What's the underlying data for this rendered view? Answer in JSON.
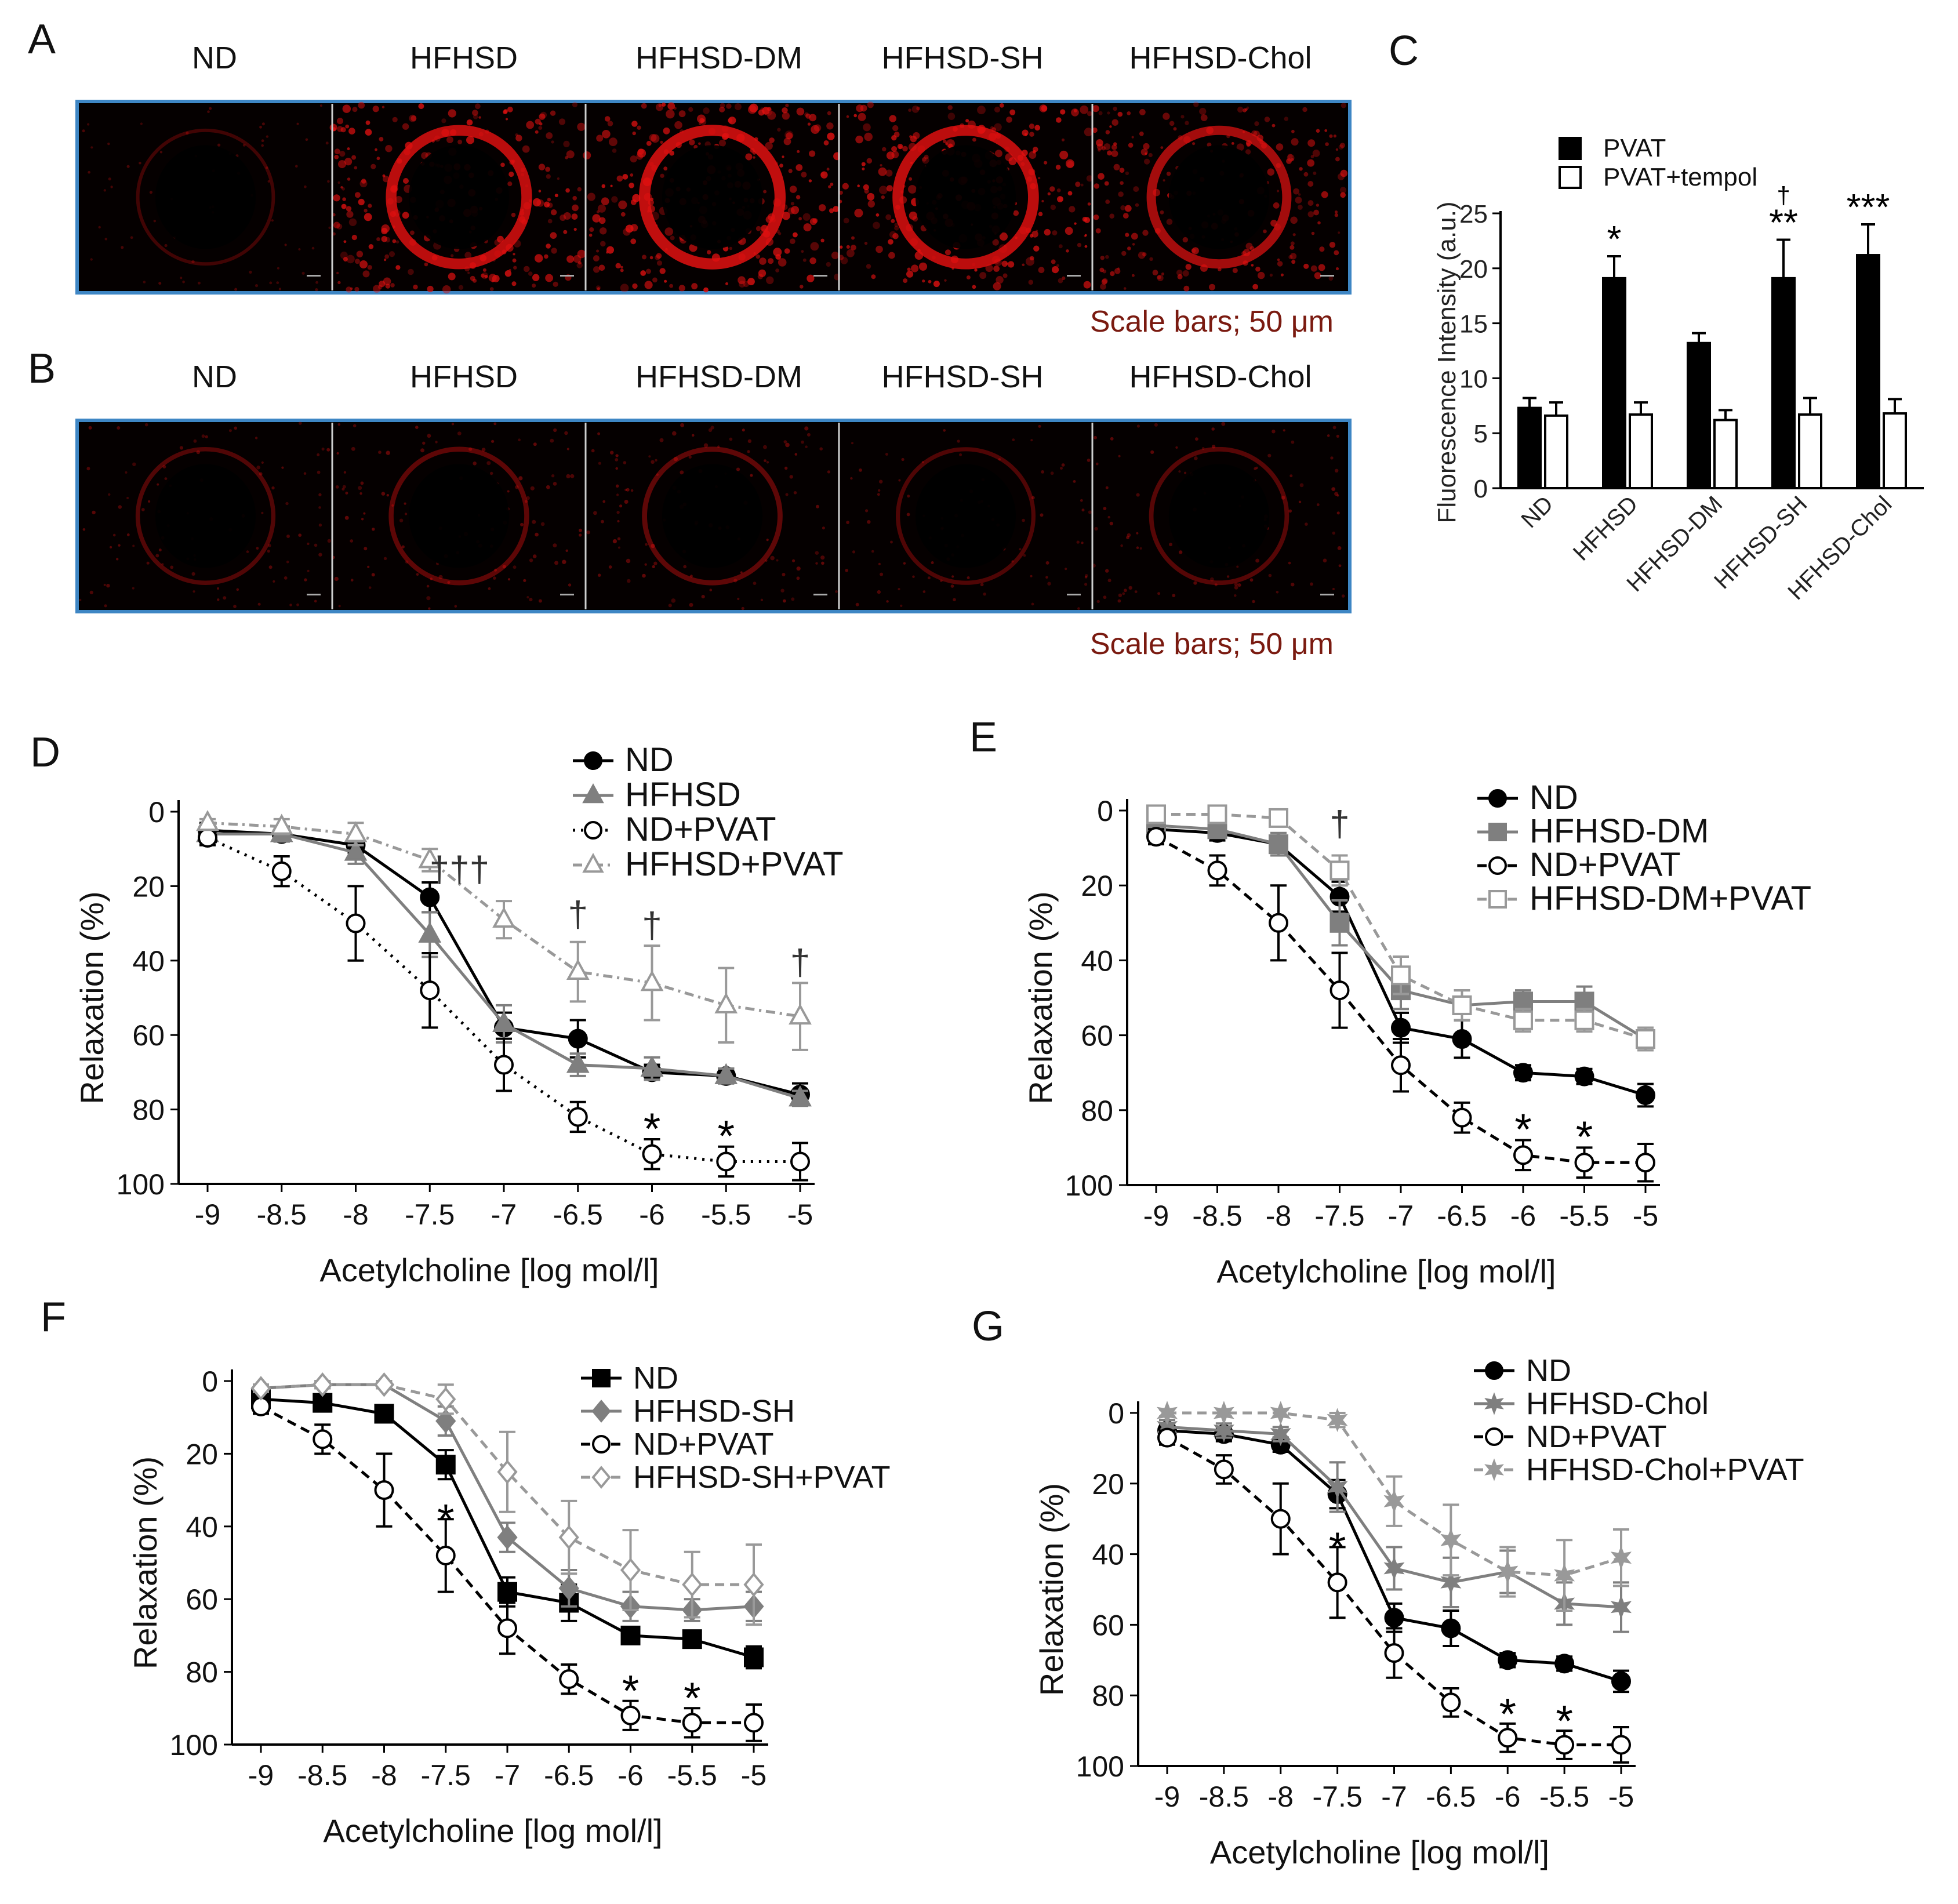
{
  "panel_labels": {
    "A": "A",
    "B": "B",
    "C": "C",
    "D": "D",
    "E": "E",
    "F": "F",
    "G": "G"
  },
  "micrographs": {
    "groups": [
      "ND",
      "HFHSD",
      "HFHSD-DM",
      "HFHSD-SH",
      "HFHSD-Chol"
    ],
    "scale_note": "Scale bars; 50 μm",
    "stain_color": "#e01010",
    "frame_color": "#3e86c4",
    "row_A_intensity": [
      0.12,
      0.9,
      0.95,
      0.92,
      0.75
    ],
    "row_B_intensity": [
      0.22,
      0.28,
      0.3,
      0.2,
      0.24
    ]
  },
  "chart_data": [
    {
      "panel": "C",
      "type": "bar",
      "categories": [
        "ND",
        "HFHSD",
        "HFHSD-DM",
        "HFHSD-SH",
        "HFHSD-Chol"
      ],
      "series": [
        {
          "name": "PVAT",
          "color": "#000000",
          "values": [
            7.3,
            19.1,
            13.2,
            19.1,
            21.2
          ],
          "errors": [
            0.9,
            2.0,
            0.9,
            3.5,
            2.8
          ]
        },
        {
          "name": "PVAT+tempol",
          "color": "#ffffff",
          "values": [
            6.6,
            6.7,
            6.2,
            6.7,
            6.8
          ],
          "errors": [
            1.2,
            1.1,
            0.9,
            1.5,
            1.3
          ]
        }
      ],
      "annotations": [
        "",
        "*",
        "",
        "**",
        "***"
      ],
      "annotations_dagger": [
        "",
        "",
        "",
        "†",
        ""
      ],
      "ylabel": "Fluorescence Intensity (a.u.)",
      "ylim": [
        0,
        25
      ],
      "yticks": [
        "0",
        "5",
        "10",
        "15",
        "20",
        "25"
      ]
    },
    {
      "panel": "D",
      "type": "line",
      "x": [
        -9,
        -8.5,
        -8,
        -7.5,
        -7,
        -6.5,
        -6,
        -5.5,
        -5
      ],
      "xticks": [
        "-9",
        "-8.5",
        "-8",
        "-7.5",
        "-7",
        "-6.5",
        "-6",
        "-5.5",
        "-5"
      ],
      "yticks": [
        "0",
        "20",
        "40",
        "60",
        "80",
        "100"
      ],
      "ylim": [
        0,
        100
      ],
      "y_inverted": true,
      "xlabel": "Acetylcholine [log mol/l]",
      "ylabel": "Relaxation (%)",
      "series": [
        {
          "name": "ND",
          "marker": "circle",
          "fill": "#000000",
          "color": "#000000",
          "dash": "",
          "values": [
            5,
            6,
            9,
            23,
            58,
            61,
            70,
            71,
            76
          ],
          "errors": [
            2,
            2,
            2,
            4,
            4,
            5,
            2,
            2,
            3
          ]
        },
        {
          "name": "HFHSD",
          "marker": "triangle",
          "fill": "#7f7f7f",
          "color": "#7f7f7f",
          "dash": "",
          "values": [
            6,
            6,
            11,
            33,
            57,
            68,
            69,
            71,
            77
          ],
          "errors": [
            2,
            2,
            3,
            6,
            5,
            3,
            3,
            2,
            2
          ]
        },
        {
          "name": "ND+PVAT",
          "marker": "circle",
          "fill": "#ffffff",
          "color": "#000000",
          "dash": "dot",
          "values": [
            7,
            16,
            30,
            48,
            68,
            82,
            92,
            94,
            94
          ],
          "errors": [
            2,
            4,
            10,
            10,
            7,
            4,
            4,
            4,
            5
          ]
        },
        {
          "name": "HFHSD+PVAT",
          "marker": "triangle",
          "fill": "#ffffff",
          "color": "#999999",
          "dash": "dashdot",
          "values": [
            3,
            4,
            6,
            13,
            29,
            43,
            46,
            52,
            55
          ],
          "errors": [
            1,
            2,
            3,
            3,
            5,
            8,
            10,
            10,
            9
          ]
        }
      ],
      "annotations": [
        {
          "text": "†††",
          "x": -7.3,
          "y": 16
        },
        {
          "text": "†",
          "x": -6.5,
          "y": 28
        },
        {
          "text": "†",
          "x": -6,
          "y": 31
        },
        {
          "text": "†",
          "x": -5,
          "y": 41
        },
        {
          "text": "*",
          "x": -6,
          "y": 83
        },
        {
          "text": "*",
          "x": -5.5,
          "y": 85
        }
      ]
    },
    {
      "panel": "E",
      "type": "line",
      "x": [
        -9,
        -8.5,
        -8,
        -7.5,
        -7,
        -6.5,
        -6,
        -5.5,
        -5
      ],
      "xticks": [
        "-9",
        "-8.5",
        "-8",
        "-7.5",
        "-7",
        "-6.5",
        "-6",
        "-5.5",
        "-5"
      ],
      "yticks": [
        "0",
        "20",
        "40",
        "60",
        "80",
        "100"
      ],
      "ylim": [
        0,
        100
      ],
      "y_inverted": true,
      "xlabel": "Acetylcholine [log mol/l]",
      "ylabel": "Relaxation (%)",
      "series": [
        {
          "name": "ND",
          "marker": "circle",
          "fill": "#000000",
          "color": "#000000",
          "dash": "",
          "values": [
            5,
            6,
            9,
            23,
            58,
            61,
            70,
            71,
            76
          ],
          "errors": [
            2,
            2,
            2,
            4,
            4,
            5,
            2,
            2,
            3
          ]
        },
        {
          "name": "HFHSD-DM",
          "marker": "square",
          "fill": "#7f7f7f",
          "color": "#7f7f7f",
          "dash": "",
          "values": [
            4,
            5,
            9,
            30,
            48,
            52,
            51,
            51,
            61
          ],
          "errors": [
            2,
            2,
            3,
            6,
            5,
            4,
            3,
            4,
            3
          ]
        },
        {
          "name": "ND+PVAT",
          "marker": "circle",
          "fill": "#ffffff",
          "color": "#000000",
          "dash": "dash",
          "values": [
            7,
            16,
            30,
            48,
            68,
            82,
            92,
            94,
            94
          ],
          "errors": [
            2,
            4,
            10,
            10,
            7,
            4,
            4,
            4,
            5
          ]
        },
        {
          "name": "HFHSD-DM+PVAT",
          "marker": "square",
          "fill": "#ffffff",
          "color": "#999999",
          "dash": "dash",
          "values": [
            1,
            1,
            2,
            16,
            44,
            52,
            56,
            56,
            61
          ],
          "errors": [
            1,
            1,
            1,
            4,
            5,
            4,
            3,
            3,
            3
          ]
        }
      ],
      "annotations": [
        {
          "text": "†",
          "x": -7.5,
          "y": 4
        },
        {
          "text": "*",
          "x": -6,
          "y": 83
        },
        {
          "text": "*",
          "x": -5.5,
          "y": 85
        }
      ]
    },
    {
      "panel": "F",
      "type": "line",
      "x": [
        -9,
        -8.5,
        -8,
        -7.5,
        -7,
        -6.5,
        -6,
        -5.5,
        -5
      ],
      "xticks": [
        "-9",
        "-8.5",
        "-8",
        "-7.5",
        "-7",
        "-6.5",
        "-6",
        "-5.5",
        "-5"
      ],
      "yticks": [
        "0",
        "20",
        "40",
        "60",
        "80",
        "100"
      ],
      "ylim": [
        0,
        100
      ],
      "y_inverted": true,
      "xlabel": "Acetylcholine [log mol/l]",
      "ylabel": "Relaxation (%)",
      "series": [
        {
          "name": "ND",
          "marker": "square",
          "fill": "#000000",
          "color": "#000000",
          "dash": "",
          "values": [
            5,
            6,
            9,
            23,
            58,
            61,
            70,
            71,
            76
          ],
          "errors": [
            2,
            2,
            2,
            4,
            4,
            5,
            2,
            2,
            3
          ]
        },
        {
          "name": "HFHSD-SH",
          "marker": "diamond",
          "fill": "#7f7f7f",
          "color": "#7f7f7f",
          "dash": "",
          "values": [
            2,
            1,
            1,
            11,
            43,
            57,
            62,
            63,
            62
          ],
          "errors": [
            1,
            1,
            1,
            4,
            4,
            5,
            4,
            3,
            4
          ]
        },
        {
          "name": "ND+PVAT",
          "marker": "circle",
          "fill": "#ffffff",
          "color": "#000000",
          "dash": "dash",
          "values": [
            7,
            16,
            30,
            48,
            68,
            82,
            92,
            94,
            94
          ],
          "errors": [
            2,
            4,
            10,
            10,
            7,
            4,
            4,
            4,
            5
          ]
        },
        {
          "name": "HFHSD-SH+PVAT",
          "marker": "diamond",
          "fill": "#ffffff",
          "color": "#999999",
          "dash": "dash",
          "values": [
            2,
            1,
            1,
            5,
            25,
            43,
            52,
            56,
            56
          ],
          "errors": [
            1,
            1,
            1,
            4,
            11,
            10,
            11,
            9,
            11
          ]
        }
      ],
      "annotations": [
        {
          "text": "*",
          "x": -7.5,
          "y": 36
        },
        {
          "text": "*",
          "x": -6,
          "y": 83
        },
        {
          "text": "*",
          "x": -5.5,
          "y": 85
        }
      ]
    },
    {
      "panel": "G",
      "type": "line",
      "x": [
        -9,
        -8.5,
        -8,
        -7.5,
        -7,
        -6.5,
        -6,
        -5.5,
        -5
      ],
      "xticks": [
        "-9",
        "-8.5",
        "-8",
        "-7.5",
        "-7",
        "-6.5",
        "-6",
        "-5.5",
        "-5"
      ],
      "yticks": [
        "0",
        "20",
        "40",
        "60",
        "80",
        "100"
      ],
      "ylim": [
        0,
        100
      ],
      "y_inverted": true,
      "xlabel": "Acetylcholine [log mol/l]",
      "ylabel": "Relaxation (%)",
      "series": [
        {
          "name": "ND",
          "marker": "circle",
          "fill": "#000000",
          "color": "#000000",
          "dash": "",
          "values": [
            5,
            6,
            9,
            23,
            58,
            61,
            70,
            71,
            76
          ],
          "errors": [
            2,
            2,
            2,
            4,
            4,
            5,
            2,
            2,
            3
          ]
        },
        {
          "name": "HFHSD-Chol",
          "marker": "star",
          "fill": "#7f7f7f",
          "color": "#7f7f7f",
          "dash": "",
          "values": [
            4,
            5,
            6,
            21,
            44,
            48,
            45,
            54,
            55
          ],
          "errors": [
            2,
            2,
            2,
            7,
            6,
            7,
            6,
            6,
            7
          ]
        },
        {
          "name": "ND+PVAT",
          "marker": "circle",
          "fill": "#ffffff",
          "color": "#000000",
          "dash": "dash",
          "values": [
            7,
            16,
            30,
            48,
            68,
            82,
            92,
            94,
            94
          ],
          "errors": [
            2,
            4,
            10,
            10,
            7,
            4,
            4,
            4,
            5
          ]
        },
        {
          "name": "HFHSD-Chol+PVAT",
          "marker": "star",
          "fill": "#999999",
          "color": "#999999",
          "dash": "dash",
          "values": [
            0,
            0,
            0,
            2,
            25,
            36,
            45,
            46,
            41
          ],
          "errors": [
            1,
            1,
            1,
            2,
            7,
            10,
            7,
            10,
            8
          ]
        }
      ],
      "annotations": [
        {
          "text": "*",
          "x": -7.5,
          "y": 36
        },
        {
          "text": "*",
          "x": -6,
          "y": 83
        },
        {
          "text": "*",
          "x": -5.5,
          "y": 85
        }
      ]
    }
  ]
}
